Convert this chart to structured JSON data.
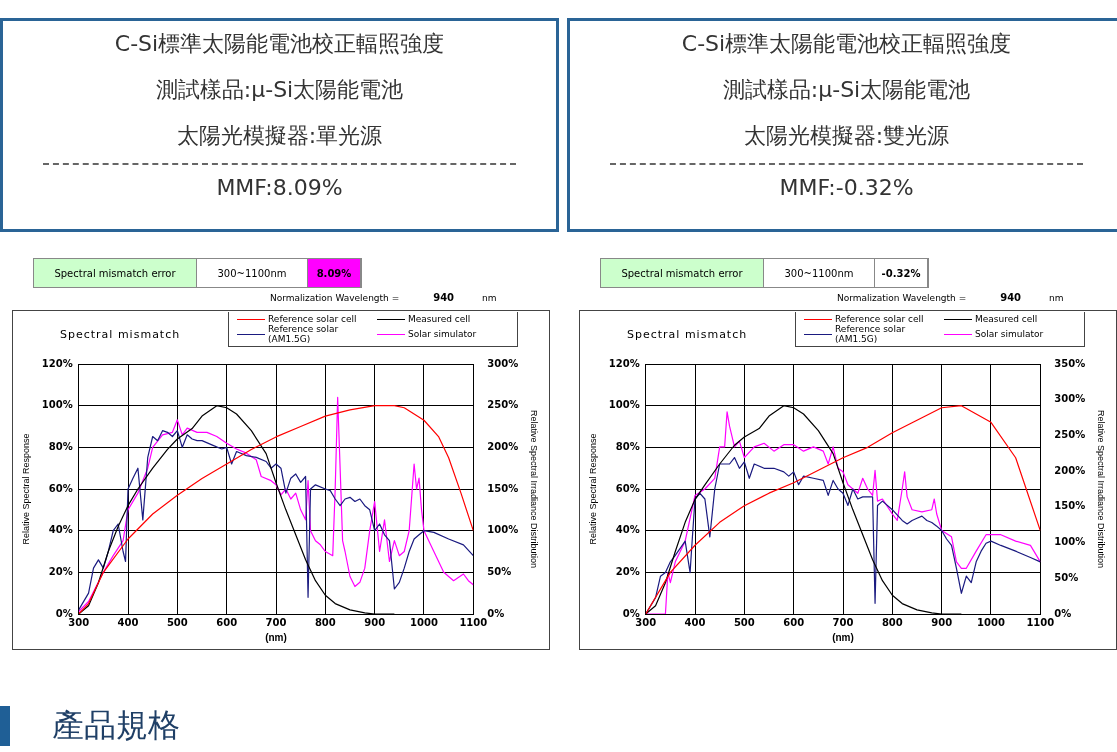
{
  "chart_data": [
    {
      "type": "line",
      "title": "C-Si標準太陽能電池校正輻照強度",
      "subtitle": "Spectral mismatch",
      "xlabel": "(nm)",
      "ylabel": "Relative Spectral Response",
      "y2label": "Relative Spectral Irradiance Distribution",
      "annotations": [
        "測試樣品:μ-Si太陽能電池",
        "太陽光模擬器:單光源",
        "MMF:8.09%",
        "Spectral mismatch error",
        "300~1100nm",
        "8.09%",
        "Normalization Wavelength =",
        "940",
        "nm"
      ],
      "xlim": [
        300,
        1100
      ],
      "xticks": [
        300,
        400,
        500,
        600,
        700,
        800,
        900,
        1000,
        1100
      ],
      "ylim": [
        0,
        120
      ],
      "yticks": [
        {
          "value": 0,
          "label": "0%"
        },
        {
          "value": 20,
          "label": "20%"
        },
        {
          "value": 40,
          "label": "40%"
        },
        {
          "value": 60,
          "label": "60%"
        },
        {
          "value": 80,
          "label": "80%"
        },
        {
          "value": 100,
          "label": "100%"
        },
        {
          "value": 120,
          "label": "120%"
        }
      ],
      "y2lim": [
        0,
        300
      ],
      "y2ticks": [
        {
          "value": 0,
          "label": "0%"
        },
        {
          "value": 50,
          "label": "50%"
        },
        {
          "value": 100,
          "label": "100%"
        },
        {
          "value": 150,
          "label": "150%"
        },
        {
          "value": 200,
          "label": "200%"
        },
        {
          "value": 250,
          "label": "250%"
        },
        {
          "value": 300,
          "label": "300%"
        }
      ],
      "grid": true,
      "legend": "top right",
      "marker": "none",
      "line_style": "solid",
      "series": [
        {
          "name": "Reference solar cell",
          "color": "#ff0000",
          "x": [
            300,
            320,
            350,
            400,
            450,
            500,
            550,
            600,
            650,
            700,
            750,
            800,
            850,
            900,
            940,
            960,
            1000,
            1030,
            1050,
            1075,
            1100
          ],
          "values": [
            0,
            5,
            20,
            36,
            48,
            57,
            65,
            72,
            79,
            85,
            90,
            95,
            98,
            100,
            100,
            99,
            93,
            85,
            75,
            58,
            40
          ]
        },
        {
          "name": "Measured cell",
          "color": "#000000",
          "x": [
            300,
            320,
            340,
            360,
            380,
            400,
            420,
            450,
            480,
            500,
            530,
            550,
            580,
            600,
            620,
            650,
            680,
            700,
            720,
            740,
            760,
            780,
            800,
            820,
            850,
            880,
            900,
            940
          ],
          "values": [
            0,
            4,
            15,
            30,
            42,
            52,
            60,
            70,
            79,
            84,
            89,
            95,
            100,
            99,
            96,
            88,
            77,
            63,
            50,
            38,
            26,
            16,
            9,
            5,
            2,
            0.5,
            0,
            0
          ]
        },
        {
          "name": "Reference solar (AM1.5G)",
          "color": "#1a1a80",
          "axis": "y2",
          "x": [
            300,
            320,
            330,
            340,
            350,
            360,
            370,
            380,
            390,
            395,
            400,
            410,
            420,
            430,
            440,
            450,
            460,
            470,
            480,
            490,
            500,
            510,
            520,
            530,
            540,
            550,
            570,
            590,
            600,
            610,
            620,
            640,
            660,
            680,
            690,
            700,
            710,
            720,
            730,
            740,
            750,
            760,
            765,
            770,
            780,
            800,
            810,
            820,
            830,
            840,
            850,
            860,
            870,
            880,
            890,
            900,
            910,
            920,
            930,
            940,
            950,
            960,
            970,
            980,
            990,
            1000,
            1020,
            1050,
            1080,
            1100
          ],
          "values": [
            5,
            25,
            55,
            65,
            55,
            75,
            100,
            108,
            75,
            63,
            150,
            163,
            175,
            113,
            188,
            213,
            208,
            220,
            218,
            213,
            220,
            200,
            215,
            210,
            208,
            208,
            203,
            198,
            200,
            180,
            195,
            190,
            188,
            183,
            175,
            180,
            175,
            145,
            163,
            168,
            158,
            165,
            20,
            150,
            155,
            150,
            148,
            138,
            130,
            138,
            140,
            135,
            138,
            130,
            125,
            100,
            108,
            95,
            88,
            30,
            38,
            55,
            75,
            90,
            95,
            100,
            98,
            90,
            83,
            70
          ]
        },
        {
          "name": "Solar simulator",
          "color": "#ff00ff",
          "axis": "y2",
          "x": [
            300,
            320,
            350,
            370,
            390,
            400,
            420,
            440,
            450,
            470,
            490,
            500,
            510,
            520,
            540,
            560,
            580,
            600,
            620,
            640,
            660,
            670,
            690,
            700,
            710,
            720,
            730,
            740,
            750,
            760,
            765,
            770,
            780,
            790,
            800,
            815,
            820,
            825,
            830,
            835,
            840,
            850,
            860,
            870,
            880,
            890,
            900,
            910,
            920,
            930,
            940,
            950,
            960,
            970,
            980,
            985,
            990,
            995,
            1000,
            1020,
            1040,
            1060,
            1080,
            1090,
            1100
          ],
          "values": [
            3,
            15,
            50,
            70,
            88,
            125,
            145,
            175,
            200,
            215,
            218,
            233,
            215,
            223,
            218,
            218,
            213,
            205,
            198,
            193,
            185,
            165,
            160,
            155,
            143,
            150,
            138,
            145,
            125,
            113,
            160,
            100,
            88,
            83,
            75,
            70,
            150,
            260,
            175,
            88,
            75,
            45,
            33,
            38,
            55,
            100,
            135,
            75,
            113,
            63,
            88,
            70,
            75,
            100,
            180,
            150,
            163,
            125,
            100,
            75,
            50,
            40,
            48,
            40,
            35
          ]
        }
      ]
    },
    {
      "type": "line",
      "title": "C-Si標準太陽能電池校正輻照強度",
      "subtitle": "Spectral mismatch",
      "xlabel": "(nm)",
      "ylabel": "Relative Spectral Response",
      "y2label": "Relative Spectral Irradiance Distribution",
      "annotations": [
        "測試樣品:μ-Si太陽能電池",
        "太陽光模擬器:雙光源",
        "MMF:-0.32%",
        "Spectral mismatch error",
        "300~1100nm",
        "-0.32%",
        "Normalization Wavelength =",
        "940",
        "nm",
        "產品規格"
      ],
      "xlim": [
        300,
        1100
      ],
      "xticks": [
        300,
        400,
        500,
        600,
        700,
        800,
        900,
        1000,
        1100
      ],
      "ylim": [
        0,
        120
      ],
      "yticks": [
        {
          "value": 0,
          "label": "0%"
        },
        {
          "value": 20,
          "label": "20%"
        },
        {
          "value": 40,
          "label": "40%"
        },
        {
          "value": 60,
          "label": "60%"
        },
        {
          "value": 80,
          "label": "80%"
        },
        {
          "value": 100,
          "label": "100%"
        },
        {
          "value": 120,
          "label": "120%"
        }
      ],
      "y2lim": [
        0,
        350
      ],
      "y2ticks": [
        {
          "value": 0,
          "label": "0%"
        },
        {
          "value": 50,
          "label": "50%"
        },
        {
          "value": 100,
          "label": "100%"
        },
        {
          "value": 150,
          "label": "150%"
        },
        {
          "value": 200,
          "label": "200%"
        },
        {
          "value": 250,
          "label": "250%"
        },
        {
          "value": 300,
          "label": "300%"
        },
        {
          "value": 350,
          "label": "350%"
        }
      ],
      "grid": true,
      "legend": "top right",
      "marker": "none",
      "line_style": "solid",
      "series": [
        {
          "name": "Reference solar cell",
          "color": "#ff0000",
          "x": [
            300,
            350,
            400,
            450,
            500,
            550,
            600,
            650,
            700,
            750,
            800,
            850,
            900,
            940,
            1000,
            1050,
            1100
          ],
          "values": [
            0,
            20,
            33,
            44,
            52,
            58,
            63,
            69,
            75,
            80,
            87,
            93,
            99,
            100,
            92,
            75,
            40
          ]
        },
        {
          "name": "Measured cell",
          "color": "#000000",
          "x": [
            300,
            320,
            340,
            360,
            380,
            400,
            420,
            450,
            480,
            500,
            530,
            550,
            580,
            600,
            620,
            650,
            680,
            700,
            720,
            740,
            760,
            780,
            800,
            820,
            850,
            880,
            900,
            940
          ],
          "values": [
            0,
            4,
            15,
            30,
            44,
            55,
            62,
            72,
            81,
            85,
            89,
            95,
            100,
            99,
            96,
            88,
            77,
            63,
            50,
            38,
            26,
            16,
            9,
            5,
            2,
            0.5,
            0,
            0
          ]
        },
        {
          "name": "Reference solar (AM1.5G)",
          "color": "#1a1a80",
          "axis": "y2",
          "x": [
            300,
            320,
            330,
            340,
            350,
            360,
            380,
            390,
            395,
            400,
            410,
            420,
            430,
            440,
            450,
            470,
            480,
            490,
            500,
            510,
            520,
            540,
            560,
            580,
            590,
            600,
            610,
            620,
            640,
            660,
            670,
            680,
            690,
            700,
            710,
            720,
            730,
            740,
            760,
            765,
            770,
            780,
            800,
            820,
            830,
            840,
            850,
            860,
            870,
            880,
            890,
            900,
            910,
            920,
            930,
            940,
            950,
            960,
            970,
            980,
            990,
            1000,
            1020,
            1050,
            1080,
            1100
          ],
          "values": [
            0,
            23,
            53,
            58,
            73,
            82,
            102,
            58,
            111,
            161,
            169,
            161,
            108,
            175,
            210,
            210,
            219,
            204,
            213,
            190,
            210,
            204,
            204,
            199,
            193,
            199,
            181,
            193,
            190,
            187,
            166,
            187,
            175,
            169,
            152,
            175,
            161,
            164,
            164,
            15,
            152,
            158,
            146,
            131,
            126,
            131,
            134,
            137,
            131,
            128,
            123,
            117,
            105,
            96,
            64,
            29,
            53,
            44,
            73,
            88,
            99,
            102,
            96,
            88,
            79,
            73
          ]
        },
        {
          "name": "Solar simulator",
          "color": "#ff00ff",
          "axis": "y2",
          "x": [
            300,
            340,
            345,
            350,
            360,
            380,
            400,
            420,
            440,
            450,
            460,
            465,
            470,
            480,
            490,
            500,
            520,
            540,
            560,
            580,
            600,
            620,
            640,
            660,
            670,
            680,
            690,
            700,
            710,
            720,
            730,
            740,
            750,
            760,
            765,
            770,
            780,
            800,
            810,
            820,
            825,
            830,
            840,
            860,
            880,
            885,
            890,
            900,
            920,
            930,
            940,
            950,
            970,
            990,
            1000,
            1020,
            1050,
            1080,
            1100
          ],
          "values": [
            0,
            0,
            58,
            44,
            73,
            102,
            166,
            175,
            190,
            234,
            234,
            283,
            263,
            234,
            242,
            219,
            234,
            239,
            228,
            237,
            237,
            228,
            234,
            228,
            210,
            234,
            204,
            199,
            181,
            175,
            169,
            190,
            175,
            166,
            201,
            158,
            161,
            140,
            131,
            175,
            199,
            164,
            146,
            143,
            146,
            161,
            140,
            117,
            108,
            73,
            64,
            64,
            88,
            111,
            111,
            111,
            102,
            96,
            73
          ]
        }
      ]
    }
  ]
}
